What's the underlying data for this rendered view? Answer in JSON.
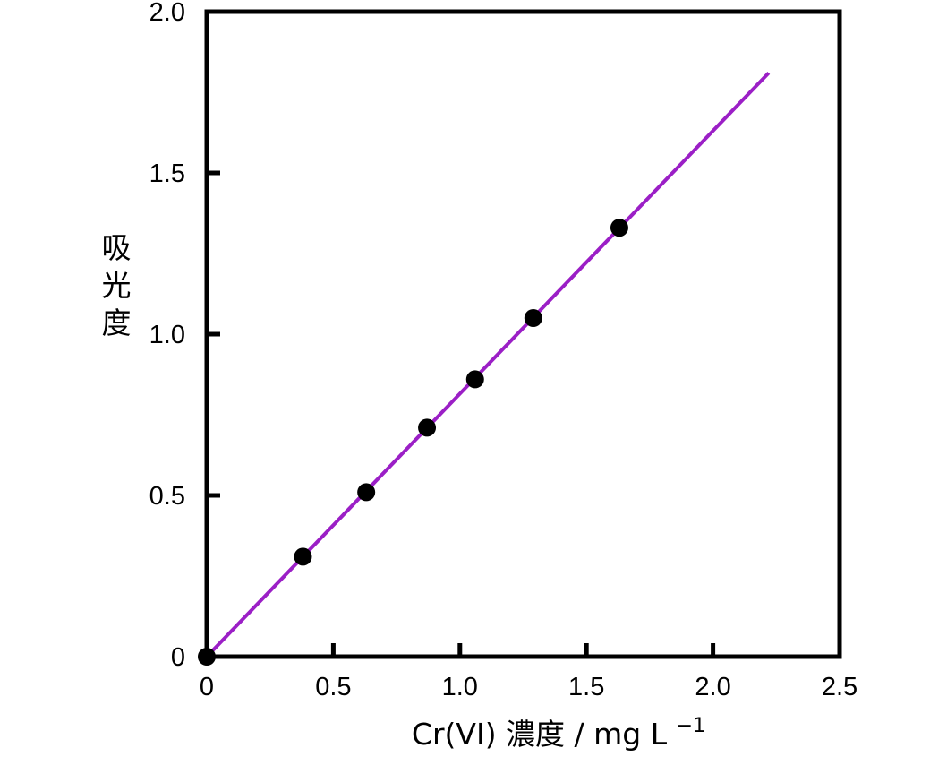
{
  "chart_data": {
    "type": "scatter",
    "xlabel": "Cr(VI) 濃度 / mg L",
    "xlabel_sup": "−1",
    "ylabel": "吸光度",
    "xlim": [
      0,
      2.5
    ],
    "ylim": [
      0,
      2.0
    ],
    "x_ticks": [
      0,
      0.5,
      1.0,
      1.5,
      2.0,
      2.5
    ],
    "x_tick_labels": [
      "0",
      "0.5",
      "1.0",
      "1.5",
      "2.0",
      "2.5"
    ],
    "y_ticks": [
      0,
      0.5,
      1.0,
      1.5,
      2.0
    ],
    "y_tick_labels": [
      "0",
      "0.5",
      "1.0",
      "1.5",
      "2.0"
    ],
    "grid": false,
    "series": [
      {
        "type": "scatter",
        "color": "#000000",
        "points": [
          {
            "x": 0.0,
            "y": 0.0
          },
          {
            "x": 0.38,
            "y": 0.31
          },
          {
            "x": 0.63,
            "y": 0.51
          },
          {
            "x": 0.87,
            "y": 0.71
          },
          {
            "x": 1.06,
            "y": 0.86
          },
          {
            "x": 1.29,
            "y": 1.05
          },
          {
            "x": 1.63,
            "y": 1.33
          }
        ]
      },
      {
        "type": "line",
        "color": "#9b1fc6",
        "points": [
          {
            "x": 0.0,
            "y": 0.0
          },
          {
            "x": 2.22,
            "y": 1.81
          }
        ]
      }
    ]
  }
}
